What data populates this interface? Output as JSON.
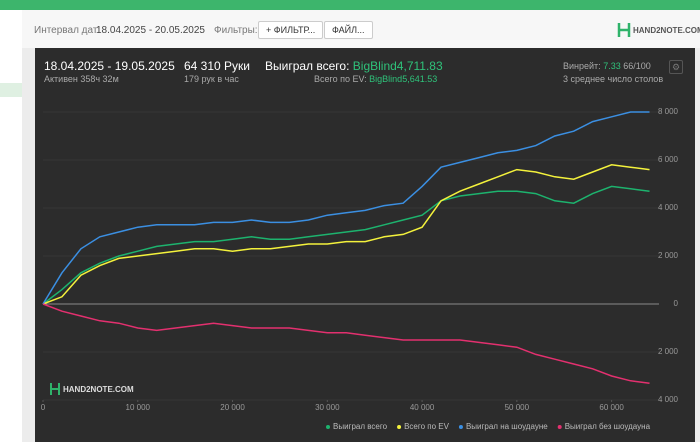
{
  "header": {
    "date_label": "Интервал дат:",
    "date_value": "18.04.2025 - 20.05.2025",
    "filters_label": "Фильтры:",
    "buttons": [
      "ФИЛЬТР...",
      "ФАЙЛ..."
    ],
    "logo": "HAND2NOTE.COM"
  },
  "stats": {
    "period": "18.04.2025 - 19.05.2025",
    "active": "Активен 358ч 32м",
    "hands": "64 310 Руки",
    "hands_per_hour": "179 рук в час",
    "won_label": "Выиграл всего:",
    "won_value": "BigBlind4,711.83",
    "ev_label": "Всего по EV:",
    "ev_value": "BigBlind5,641.53",
    "winrate_label": "Винрейт:",
    "winrate_value": "7.33",
    "winrate_unit": "66/100",
    "tables": "3 среднее число столов"
  },
  "chart_data": {
    "type": "line",
    "watermark": "HAND2NOTE.COM",
    "grid": true,
    "x": [
      0,
      2000,
      4000,
      6000,
      8000,
      10000,
      12000,
      14000,
      16000,
      18000,
      20000,
      22000,
      24000,
      26000,
      28000,
      30000,
      32000,
      34000,
      36000,
      38000,
      40000,
      42000,
      44000,
      46000,
      48000,
      50000,
      52000,
      54000,
      56000,
      58000,
      60000,
      62000,
      64000
    ],
    "xlim": [
      0,
      65000
    ],
    "xticks": [
      0,
      {
        "value": 10000,
        "label": "10 000"
      },
      {
        "value": 20000,
        "label": "20 000"
      },
      {
        "value": 30000,
        "label": "30 000"
      },
      {
        "value": 40000,
        "label": "40 000"
      },
      {
        "value": 50000,
        "label": "50 000"
      },
      {
        "value": 60000,
        "label": "60 000"
      }
    ],
    "ylim": [
      -4000,
      8500
    ],
    "yticks": [
      {
        "value": -4000,
        "label": "4 000"
      },
      {
        "value": -2000,
        "label": "2 000"
      },
      0,
      {
        "value": 2000,
        "label": "2 000"
      },
      {
        "value": 4000,
        "label": "4 000"
      },
      {
        "value": 6000,
        "label": "6 000"
      },
      {
        "value": 8000,
        "label": "8 000"
      }
    ],
    "series": [
      {
        "name": "Выиграл всего",
        "color": "#1db36e",
        "values": [
          0,
          600,
          1300,
          1700,
          2000,
          2200,
          2400,
          2500,
          2600,
          2600,
          2700,
          2800,
          2700,
          2700,
          2800,
          2900,
          3000,
          3100,
          3300,
          3500,
          3700,
          4300,
          4500,
          4600,
          4700,
          4700,
          4600,
          4300,
          4200,
          4600,
          4900,
          4800,
          4700
        ]
      },
      {
        "name": "Всего по EV",
        "color": "#f4f23c",
        "values": [
          0,
          300,
          1200,
          1600,
          1900,
          2000,
          2100,
          2200,
          2300,
          2300,
          2200,
          2300,
          2300,
          2400,
          2500,
          2500,
          2600,
          2600,
          2800,
          2900,
          3200,
          4300,
          4700,
          5000,
          5300,
          5600,
          5500,
          5300,
          5200,
          5500,
          5800,
          5700,
          5600
        ]
      },
      {
        "name": "Выиграл на шоудауне",
        "color": "#3b8fe2",
        "values": [
          0,
          1300,
          2300,
          2800,
          3000,
          3200,
          3300,
          3300,
          3300,
          3400,
          3400,
          3500,
          3400,
          3400,
          3500,
          3700,
          3800,
          3900,
          4100,
          4200,
          4900,
          5700,
          5900,
          6100,
          6300,
          6400,
          6600,
          7000,
          7200,
          7600,
          7800,
          8000,
          8000
        ]
      },
      {
        "name": "Выиграл без шоудауна",
        "color": "#e3306f",
        "values": [
          0,
          -300,
          -500,
          -700,
          -800,
          -1000,
          -1100,
          -1000,
          -900,
          -800,
          -900,
          -1000,
          -1000,
          -1000,
          -1100,
          -1200,
          -1200,
          -1300,
          -1400,
          -1500,
          -1500,
          -1500,
          -1500,
          -1600,
          -1700,
          -1800,
          -2100,
          -2300,
          -2500,
          -2700,
          -3000,
          -3200,
          -3300
        ]
      }
    ]
  }
}
